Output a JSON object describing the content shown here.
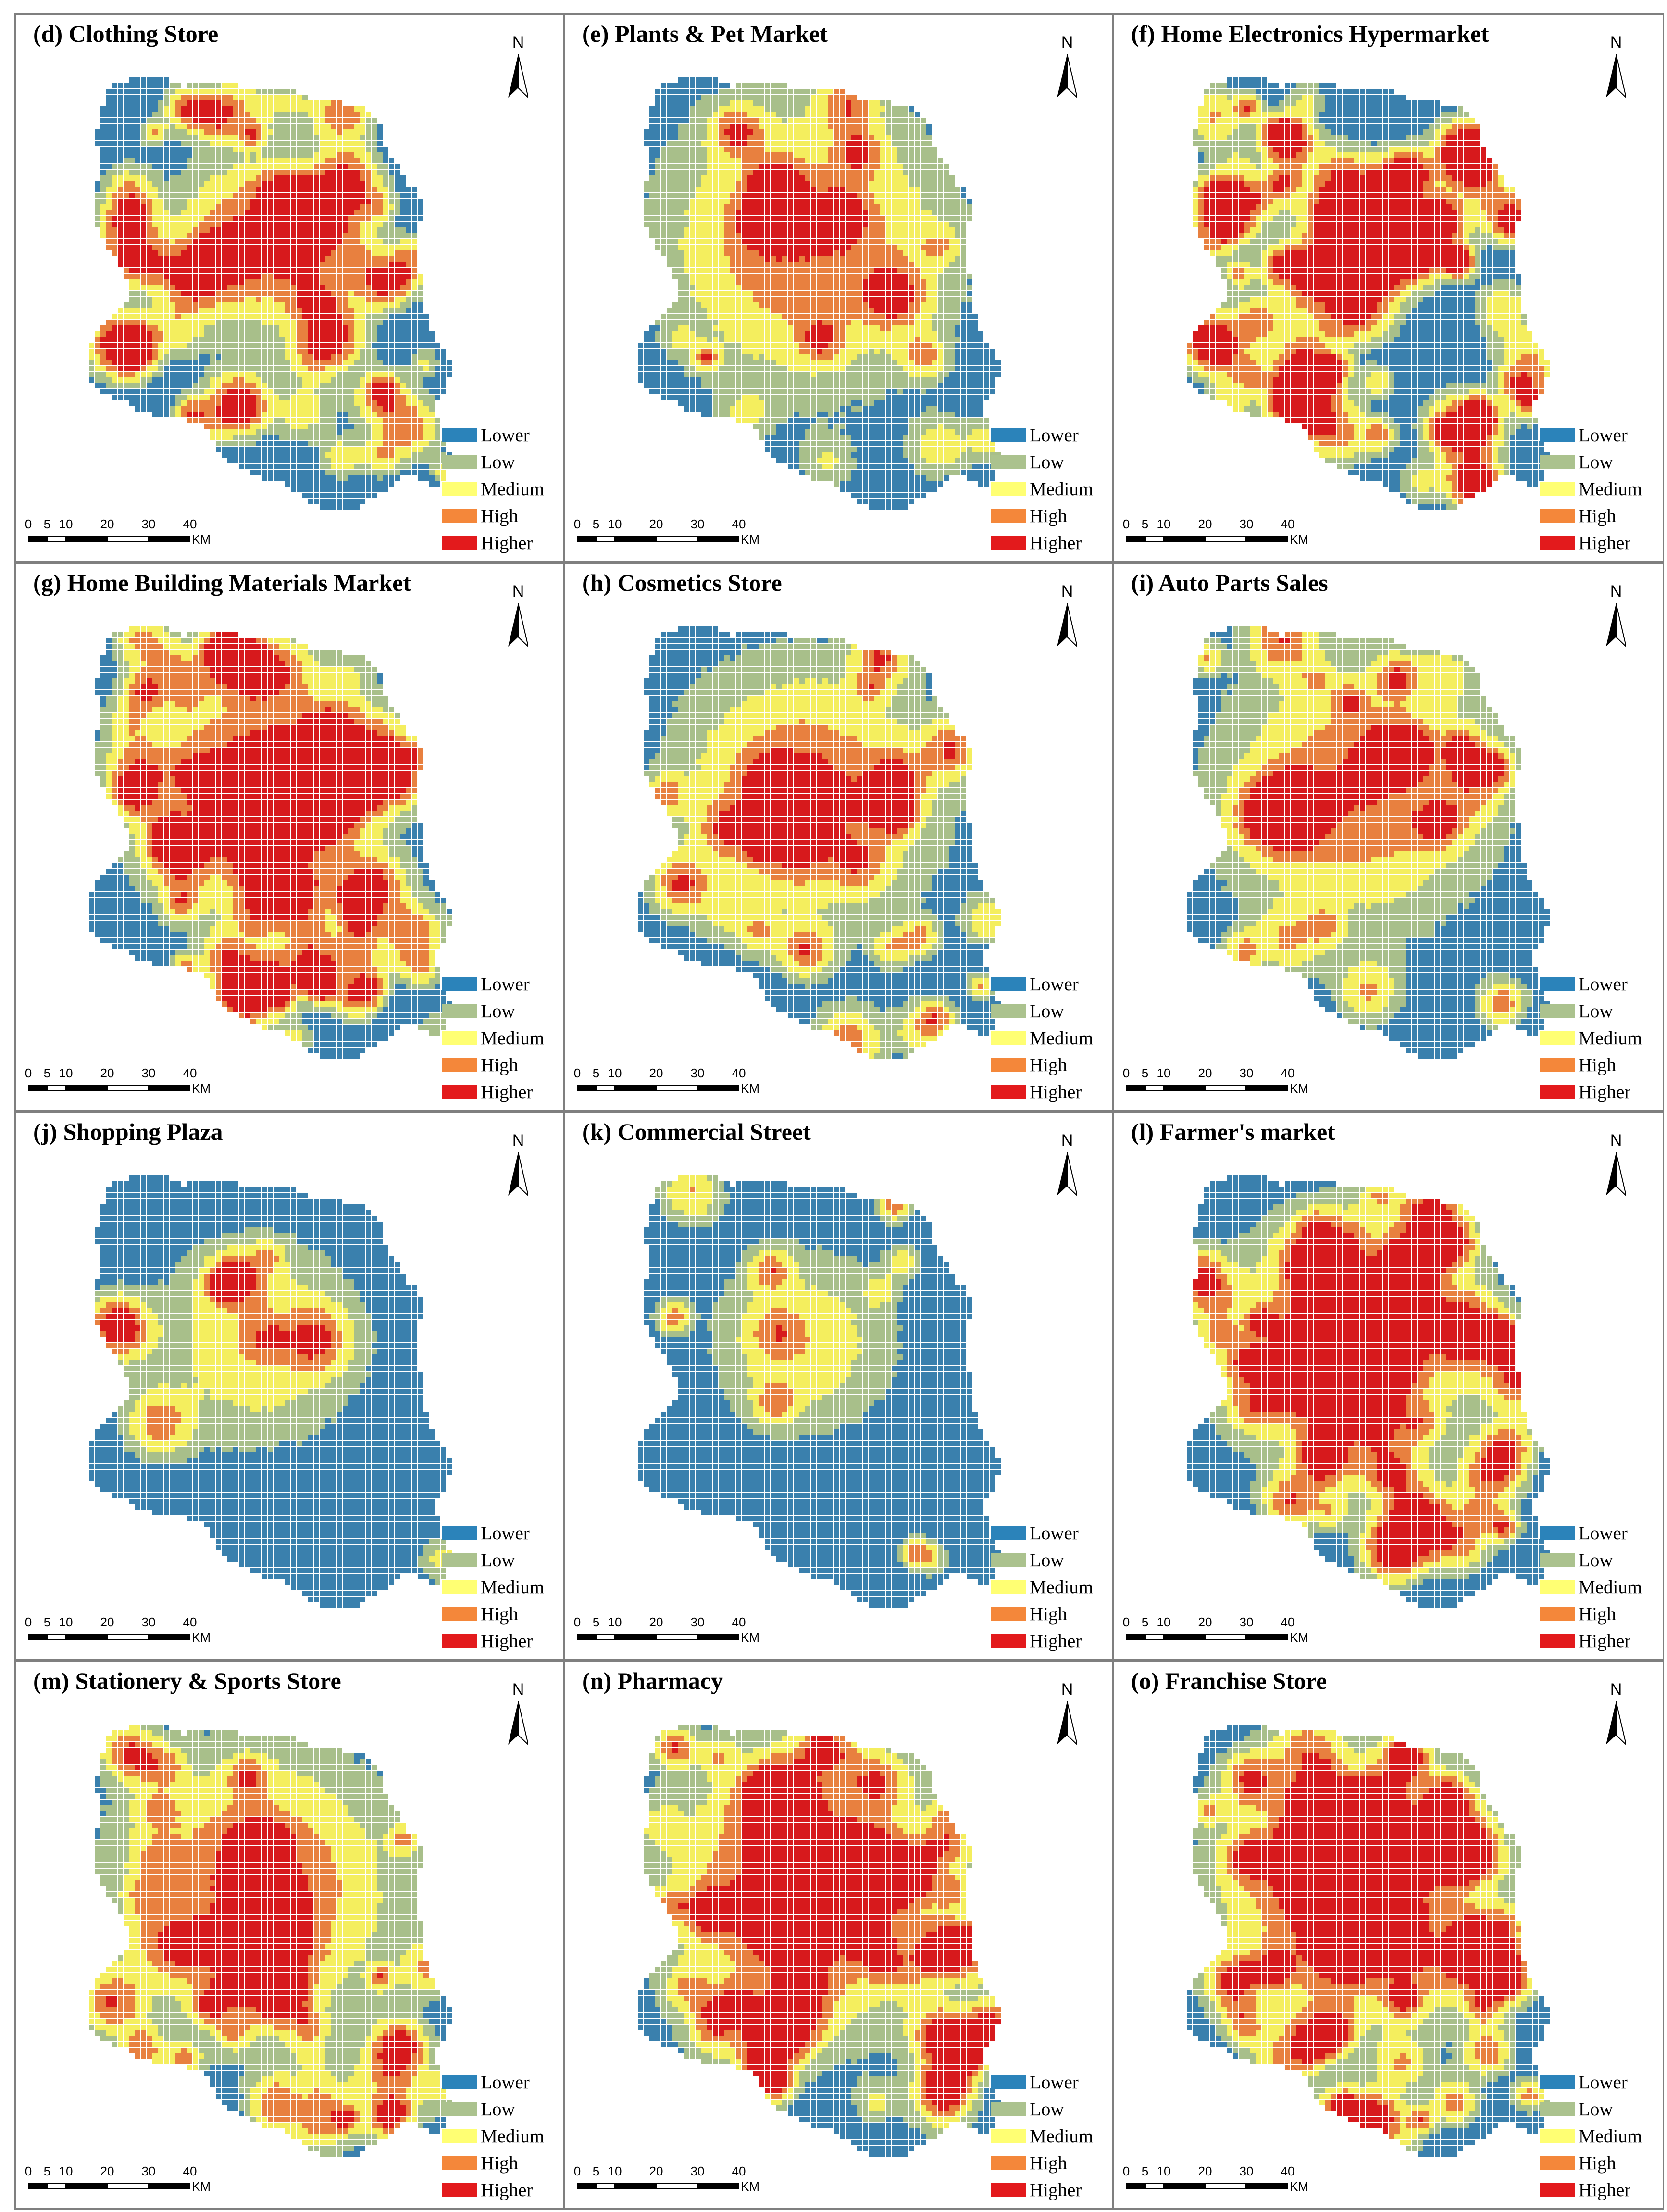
{
  "legend_labels": [
    "Lower",
    "Low",
    "Medium",
    "High",
    "Higher"
  ],
  "legend_colors": [
    "#2b83ba",
    "#abc28e",
    "#ffff73",
    "#f4873a",
    "#e31a1c"
  ],
  "map_colors": {
    "lower": "#3a80ad",
    "low": "#a8bf8a",
    "medium": "#f4ee5e",
    "high": "#e8803f",
    "higher": "#d7191c",
    "grid_line": "#ffffff"
  },
  "north_label": "N",
  "scale": {
    "ticks": [
      "0",
      "5",
      "10",
      "20",
      "30",
      "40"
    ],
    "unit": "KM"
  },
  "panels": [
    {
      "title": "(d) Clothing Store"
    },
    {
      "title": "(e) Plants & Pet Market"
    },
    {
      "title": "(f) Home Electronics Hypermarket"
    },
    {
      "title": "(g) Home Building Materials Market"
    },
    {
      "title": "(h) Cosmetics Store"
    },
    {
      "title": "(i) Auto Parts Sales"
    },
    {
      "title": "(j) Shopping Plaza"
    },
    {
      "title": "(k) Commercial Street"
    },
    {
      "title": "(l) Farmer's market"
    },
    {
      "title": "(m) Stationery & Sports Store"
    },
    {
      "title": "(n) Pharmacy"
    },
    {
      "title": "(o) Franchise Store"
    }
  ]
}
